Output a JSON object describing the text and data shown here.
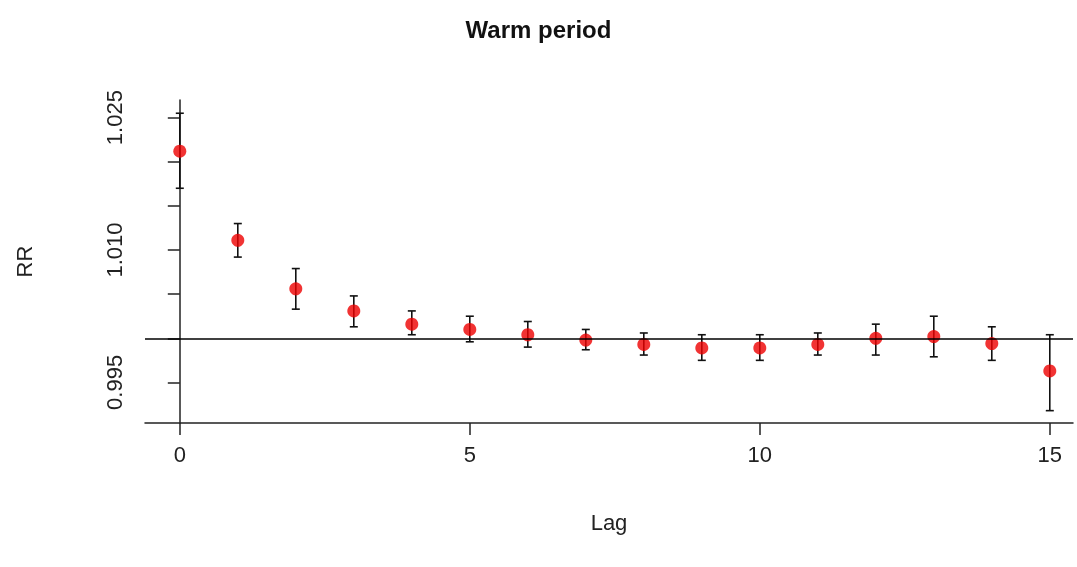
{
  "chart_data": {
    "type": "scatter",
    "title": "Warm period",
    "xlabel": "Lag",
    "ylabel": "RR",
    "x": [
      0,
      1,
      2,
      3,
      4,
      5,
      6,
      7,
      8,
      9,
      10,
      11,
      12,
      13,
      14,
      15
    ],
    "values": [
      1.0212,
      1.0111,
      1.0056,
      1.0031,
      1.0016,
      1.001,
      1.0004,
      0.9998,
      0.9993,
      0.9989,
      0.9989,
      0.9993,
      1.0,
      1.0002,
      0.9994,
      0.9963
    ],
    "errors": [
      [
        1.017,
        1.0255
      ],
      [
        1.0092,
        1.013
      ],
      [
        1.0033,
        1.0079
      ],
      [
        1.0013,
        1.0048
      ],
      [
        1.0004,
        1.0031
      ],
      [
        0.9996,
        1.0025
      ],
      [
        0.999,
        1.0019
      ],
      [
        0.9987,
        1.001
      ],
      [
        0.9981,
        1.0006
      ],
      [
        0.9975,
        1.0004
      ],
      [
        0.9975,
        1.0004
      ],
      [
        0.9981,
        1.0006
      ],
      [
        0.9981,
        1.0016
      ],
      [
        0.9979,
        1.0025
      ],
      [
        0.9975,
        1.0013
      ],
      [
        0.9918,
        1.0004
      ]
    ],
    "color": "#ee0000",
    "marker": "circle",
    "xlim": [
      -0.6,
      15.4
    ],
    "xticks": [
      0,
      5,
      10,
      15
    ],
    "ylim": [
      0.9904,
      1.027
    ],
    "yticks": [
      1.025,
      {
        "value": 1.02,
        "label": null
      },
      {
        "value": 1.015,
        "label": null
      },
      {
        "value": 1.01,
        "label": "1.010"
      },
      {
        "value": 1.005,
        "label": null
      },
      {
        "value": 1.0,
        "label": null
      },
      0.995
    ],
    "ref_lines": [
      {
        "axis": "y",
        "value": 1.0,
        "color": "#000000",
        "line_style": "solid"
      }
    ]
  }
}
